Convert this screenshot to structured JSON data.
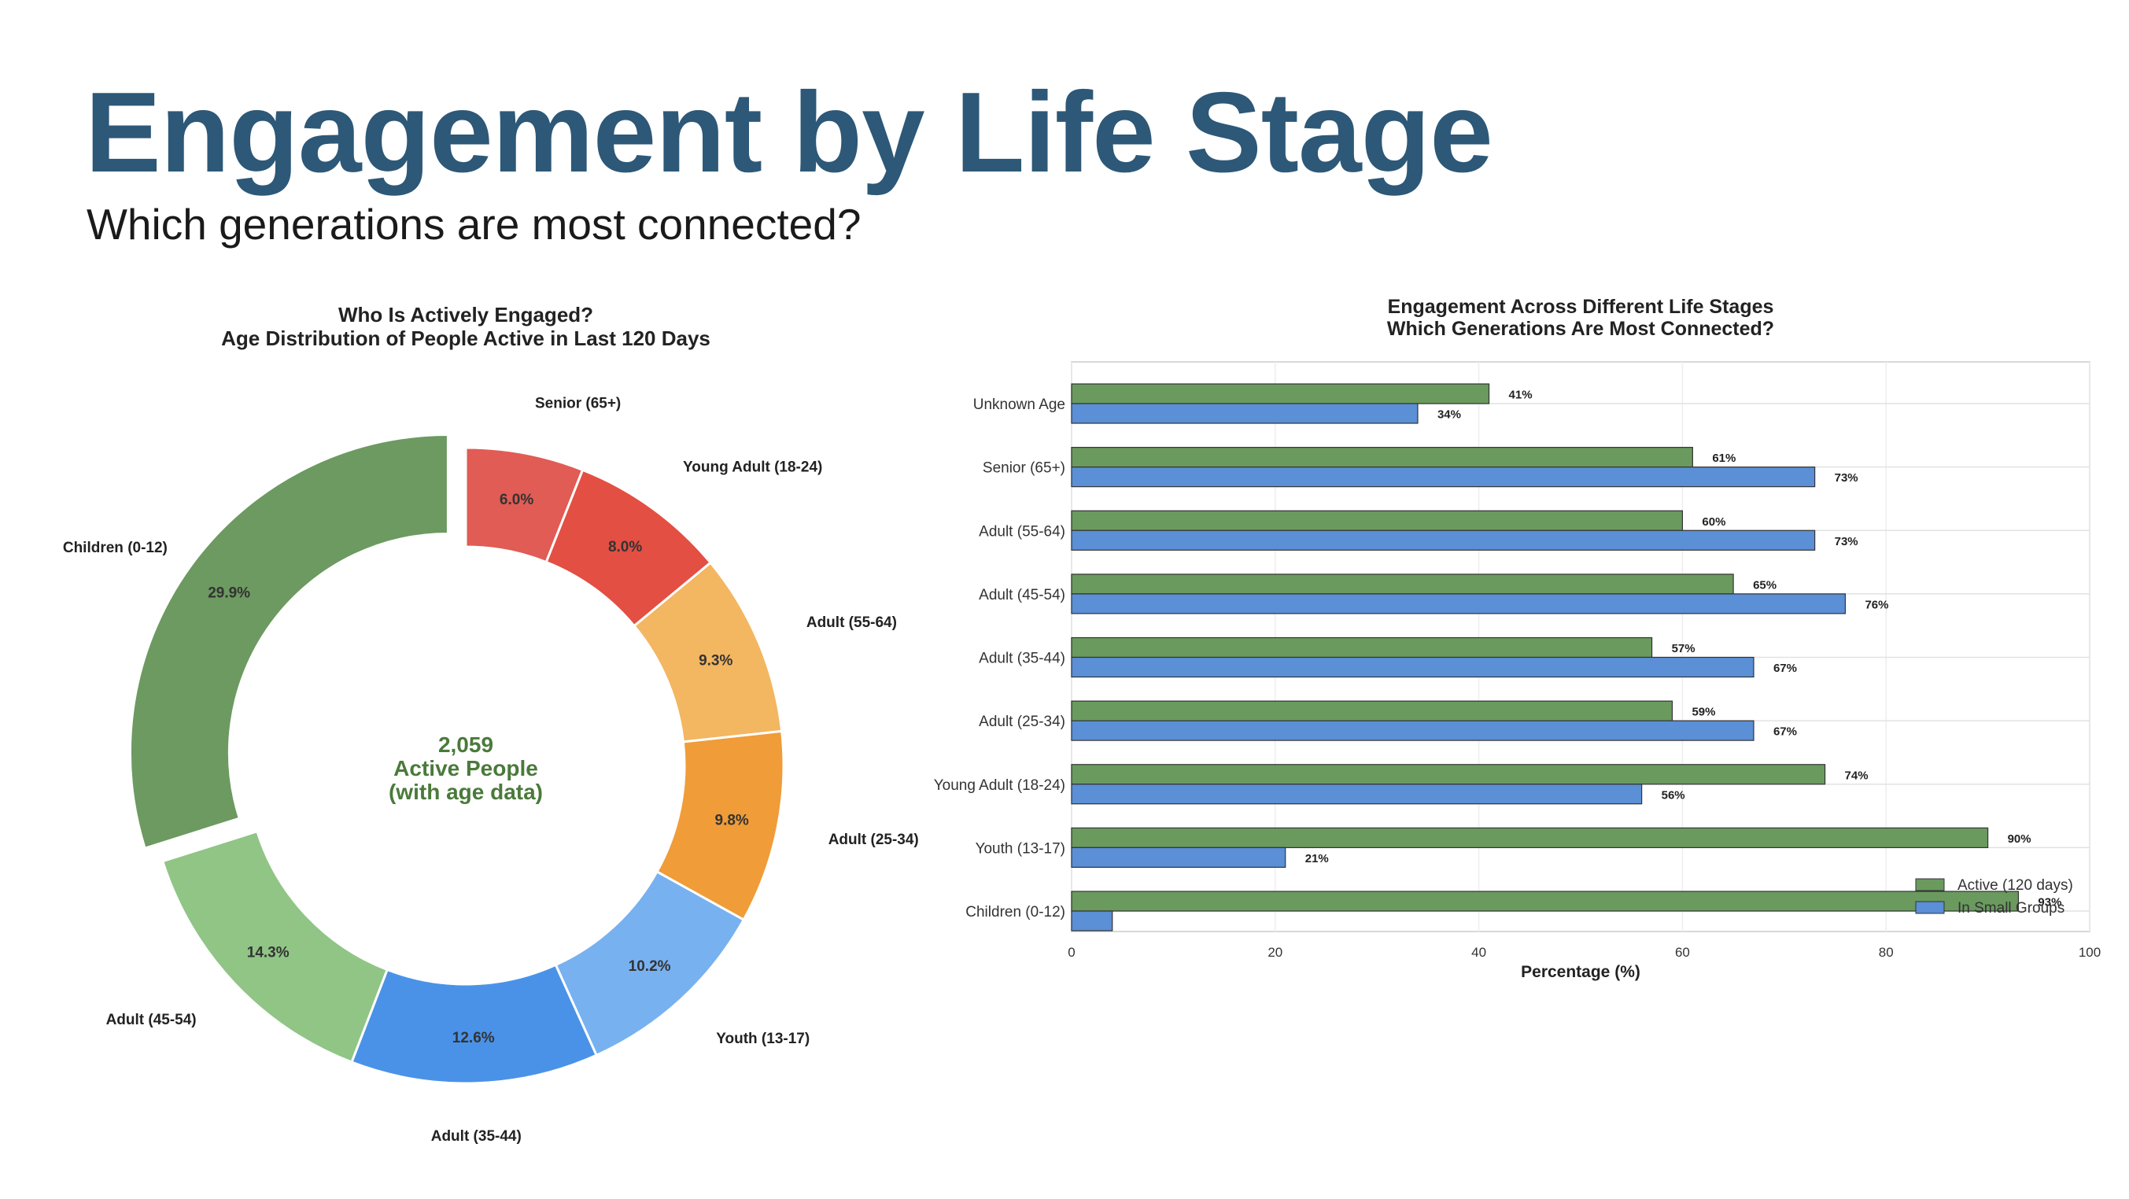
{
  "page": {
    "title": "Engagement by Life Stage",
    "subtitle": "Which generations are most connected?"
  },
  "colors": {
    "title": "#2d5878",
    "active": "#6a9a5e",
    "groups": "#5b8fd6",
    "center_text": "#4a7a3a"
  },
  "chart_data": [
    {
      "type": "pie",
      "variant": "donut",
      "title": "Who Is Actively Engaged?",
      "subtitle": "Age Distribution of People Active in Last 120 Days",
      "center_label": {
        "value": "2,059",
        "line1": "Active People",
        "line2": "(with age data)"
      },
      "exploded": "Children (0-12)",
      "slices": [
        {
          "label": "Senior (65+)",
          "value": 6.0,
          "display": "6.0%",
          "color": "#e05c54"
        },
        {
          "label": "Young Adult (18-24)",
          "value": 8.0,
          "display": "8.0%",
          "color": "#e34f42"
        },
        {
          "label": "Adult (55-64)",
          "value": 9.3,
          "display": "9.3%",
          "color": "#f3b661"
        },
        {
          "label": "Adult (25-34)",
          "value": 9.8,
          "display": "9.8%",
          "color": "#f09c38"
        },
        {
          "label": "Youth (13-17)",
          "value": 10.2,
          "display": "10.2%",
          "color": "#78b1f0"
        },
        {
          "label": "Adult (35-44)",
          "value": 12.6,
          "display": "12.6%",
          "color": "#4a92e8"
        },
        {
          "label": "Adult (45-54)",
          "value": 14.3,
          "display": "14.3%",
          "color": "#90c585"
        },
        {
          "label": "Children (0-12)",
          "value": 29.9,
          "display": "29.9%",
          "color": "#6c9a60"
        }
      ]
    },
    {
      "type": "bar",
      "orientation": "horizontal",
      "title": "Engagement Across Different Life Stages",
      "subtitle": "Which Generations Are Most Connected?",
      "xlabel": "Percentage (%)",
      "xlim": [
        0,
        100
      ],
      "xticks": [
        0,
        20,
        40,
        60,
        80,
        100
      ],
      "legend_position": "bottom-right",
      "categories": [
        "Unknown Age",
        "Senior (65+)",
        "Adult (55-64)",
        "Adult (45-54)",
        "Adult (35-44)",
        "Adult (25-34)",
        "Young Adult (18-24)",
        "Youth (13-17)",
        "Children (0-12)"
      ],
      "series": [
        {
          "name": "Active (120 days)",
          "color": "#6a9a5e",
          "values": [
            41,
            61,
            60,
            65,
            57,
            59,
            74,
            90,
            93
          ],
          "labels": [
            "41%",
            "61%",
            "60%",
            "65%",
            "57%",
            "59%",
            "74%",
            "90%",
            "93%"
          ]
        },
        {
          "name": "In Small Groups",
          "color": "#5b8fd6",
          "values": [
            34,
            73,
            73,
            76,
            67,
            67,
            56,
            21,
            4
          ],
          "labels": [
            "34%",
            "73%",
            "73%",
            "76%",
            "67%",
            "67%",
            "56%",
            "21%",
            ""
          ]
        }
      ]
    }
  ]
}
